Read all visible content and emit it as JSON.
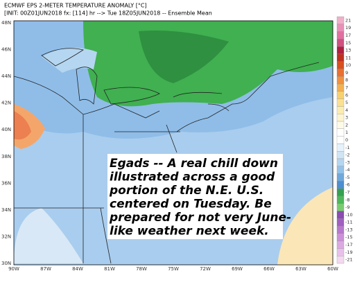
{
  "header": {
    "title": "ECMWF EPS 2-METER TEMPERATURE ANOMALY [°C]",
    "subtitle": "[INIT: 00Z01JUN2018 fx: [114] hr --> Tue 18Z05JUN2018 -- Ensemble Mean"
  },
  "map": {
    "lat_labels": [
      "48N",
      "46N",
      "44N",
      "42N",
      "40N",
      "38N",
      "36N",
      "34N",
      "32N",
      "30N"
    ],
    "lon_labels": [
      "90W",
      "87W",
      "84W",
      "81W",
      "78W",
      "75W",
      "72W",
      "69W",
      "66W",
      "63W",
      "60W"
    ]
  },
  "colorbar": {
    "labels": [
      "21",
      "19",
      "17",
      "15",
      "13",
      "11",
      "10",
      "9",
      "8",
      "7",
      "6",
      "5",
      "4",
      "3",
      "2",
      "1",
      "0",
      "-1",
      "-2",
      "-3",
      "-4",
      "-5",
      "-6",
      "-7",
      "-8",
      "-9",
      "-10",
      "-11",
      "-13",
      "-15",
      "-17",
      "-19",
      "-21"
    ],
    "colors": [
      "#f0b0c8",
      "#e890b8",
      "#e070a0",
      "#d05080",
      "#b02040",
      "#c03020",
      "#d85020",
      "#e87030",
      "#f09040",
      "#f4b050",
      "#f8d070",
      "#fae090",
      "#fbecb0",
      "#fdf4d0",
      "#fefae8",
      "#ffffff",
      "#ffffff",
      "#e6f2fb",
      "#cfe5f6",
      "#b5d6f0",
      "#95c2e8",
      "#70a8dc",
      "#4f8ed0",
      "#35a050",
      "#4cb85a",
      "#78cc70",
      "#8a4cb0",
      "#a060c0",
      "#b878cc",
      "#cc90d8",
      "#dca8e2",
      "#e8c0ea",
      "#f4d8f0"
    ]
  },
  "annotation": {
    "lines": [
      "Egads -- A real chill down",
      "illustrated across a good",
      "portion of the N.E. U.S.",
      "centered on Tuesday.  Be",
      "prepared for not very June-",
      "like weather next week."
    ]
  }
}
